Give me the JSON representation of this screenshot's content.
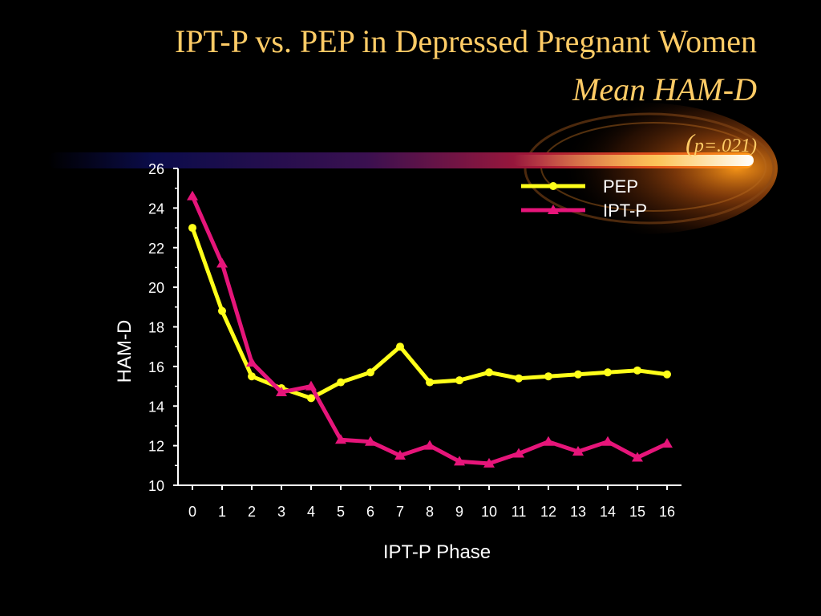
{
  "slide": {
    "title": "IPT-P vs. PEP in Depressed Pregnant Women",
    "subtitle": "Mean HAM-D",
    "p_open": "(",
    "p_value": "p=.021)"
  },
  "colors": {
    "background": "#000000",
    "title": "#FFCC66",
    "axes": "#FFFFFF",
    "pep": "#FFFF1A",
    "iptp": "#E6157A"
  },
  "chart_data": {
    "type": "line",
    "xlabel": "IPT-P Phase",
    "ylabel": "HAM-D",
    "ylim": [
      10,
      26
    ],
    "yticks": [
      "10",
      "12",
      "14",
      "16",
      "18",
      "20",
      "22",
      "24",
      "26"
    ],
    "x": [
      "0",
      "1",
      "2",
      "3",
      "4",
      "5",
      "6",
      "7",
      "8",
      "9",
      "10",
      "11",
      "12",
      "13",
      "14",
      "15",
      "16"
    ],
    "grid": false,
    "legend_position": "top-right",
    "series": [
      {
        "name": "PEP",
        "marker": "circle",
        "color": "#FFFF1A",
        "values": [
          23.0,
          18.8,
          15.5,
          14.9,
          14.4,
          15.2,
          15.7,
          17.0,
          15.2,
          15.3,
          15.7,
          15.4,
          15.5,
          15.6,
          15.7,
          15.8,
          15.6
        ]
      },
      {
        "name": "IPT-P",
        "marker": "triangle",
        "color": "#E6157A",
        "values": [
          24.6,
          21.2,
          16.2,
          14.7,
          15.0,
          12.3,
          12.2,
          11.5,
          12.0,
          11.2,
          11.1,
          11.6,
          12.2,
          11.7,
          12.2,
          11.4,
          12.1
        ]
      }
    ]
  }
}
